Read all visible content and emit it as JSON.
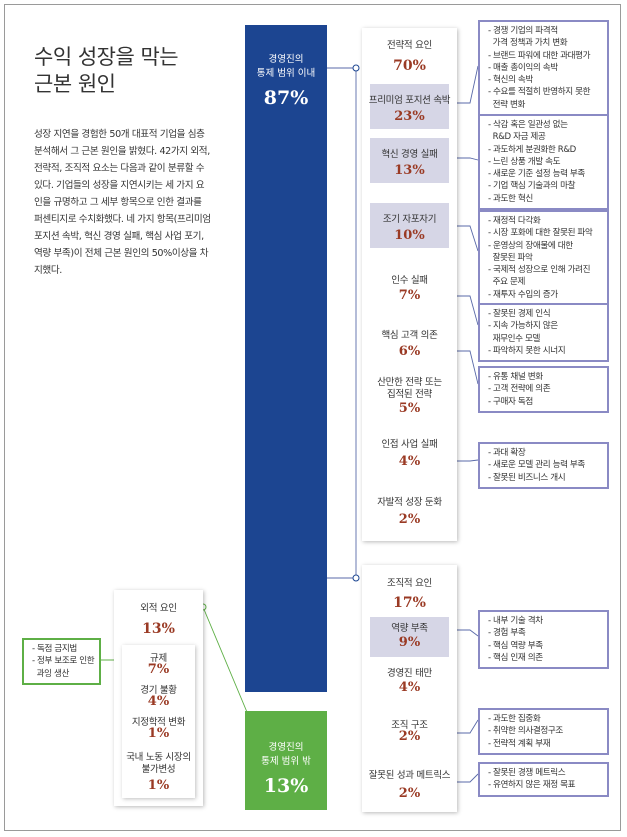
{
  "title": [
    "수익 성장을 막는",
    "근본 원인"
  ],
  "intro": "성장 지연을 경험한 50개 대표적 기업을 심층 분석해서 그 근본 원인을 밝혔다. 42가지 외적, 전략적, 조직적 요소는 다음과 같이 분류할 수 있다. 기업들의 성장을 지연시키는 세 가지 요인을 규명하고 그 세부 항목으로 인한 결과를 퍼센티지로 수치화했다. 네 가지 항목(프리미엄 포지션 속박, 혁신 경영 실패, 핵심 사업 포기, 역량 부족)이 전체 근본 원인의 50%이상을 차지했다.",
  "colors": {
    "blue": "#1c4591",
    "green": "#5eaf46",
    "accent": "#9a3a24",
    "note_border": "#8a8ac4"
  },
  "controllable": {
    "label": [
      "경영진의",
      "통제 범위 이내"
    ],
    "value": "87%"
  },
  "uncontrollable": {
    "label": [
      "경영진의",
      "통제 범위 밖"
    ],
    "value": "13%"
  },
  "strategic": {
    "label": "전략적 요인",
    "value": "70%",
    "items": [
      {
        "label": "프리미엄 포지션 속박",
        "value": "23%",
        "notes": [
          "- 경쟁 기업의 파격적",
          "  가격 정책과 가치 변화",
          "- 브랜드 파워에 대한 과대평가",
          "- 매출 총이익의 속박",
          "- 혁신의 속박",
          "- 수요를 적절히 반영하지 못한",
          "  전략 변화"
        ]
      },
      {
        "label": "혁신 경영 실패",
        "value": "13%",
        "notes": [
          "- 삭감 혹은 일관성 없는",
          "  R&D 자금 제공",
          "- 과도하게 분권화한 R&D",
          "- 느린 상품 개발 속도",
          "- 새로운 기준 설정 능력 부족",
          "- 기업 핵심 기술과의 마찰",
          "- 과도한 혁신"
        ]
      },
      {
        "label": "조기 자포자기",
        "value": "10%",
        "notes": [
          "- 재정적 다각화",
          "- 시장 포화에 대한 잘못된 파악",
          "- 운영상의 장애물에 대한",
          "  잘못된 파악",
          "- 국제적 성장으로 인해 가려진",
          "  주요 문제",
          "- 재투자 수입의 증가"
        ]
      },
      {
        "label": "인수 실패",
        "value": "7%",
        "notes": [
          "- 잘못된 경제 인식",
          "- 지속 가능하지 않은",
          "  재무인수 모델",
          "- 파악하지 못한 시너지"
        ]
      },
      {
        "label": "핵심 고객 의존",
        "value": "6%",
        "notes": [
          "- 유통 채널 변화",
          "- 고객 전략에 의존",
          "- 구매자 독점"
        ]
      },
      {
        "label": "산만한 전략 또는 집적된 전략",
        "value": "5%",
        "notes": []
      },
      {
        "label": "인접 사업 실패",
        "value": "4%",
        "notes": [
          "- 과대 확장",
          "- 새로운 모델 관리 능력 부족",
          "- 잘못된 비즈니스 개시"
        ]
      },
      {
        "label": "자발적 성장 둔화",
        "value": "2%",
        "notes": []
      }
    ]
  },
  "organizational": {
    "label": "조직적 요인",
    "value": "17%",
    "items": [
      {
        "label": "역량 부족",
        "value": "9%",
        "notes": [
          "- 내부 기술 격차",
          "- 경험 부족",
          "- 핵심 역량 부족",
          "- 핵심 인재 의존"
        ]
      },
      {
        "label": "경영진 태만",
        "value": "4%",
        "notes": []
      },
      {
        "label": "조직 구조",
        "value": "2%",
        "notes": [
          "- 과도한 집중화",
          "- 취약한 의사결정구조",
          "- 전략적 계획 부재"
        ]
      },
      {
        "label": "잘못된 성과 메트릭스",
        "value": "2%",
        "notes": [
          "- 잘못된 경쟁 메트릭스",
          "- 유연하지 않은 재정 목표"
        ]
      }
    ]
  },
  "external": {
    "label": "외적 요인",
    "value": "13%",
    "items": [
      {
        "label": "규제",
        "value": "7%"
      },
      {
        "label": "경기 불황",
        "value": "4%"
      },
      {
        "label": "지정학적 변화",
        "value": "1%"
      },
      {
        "label": "국내 노동 시장의 불가변성",
        "value": "1%"
      }
    ],
    "notes": [
      "- 독점 금지법",
      "- 정부 보조로 인한",
      "  과잉 생산"
    ]
  }
}
